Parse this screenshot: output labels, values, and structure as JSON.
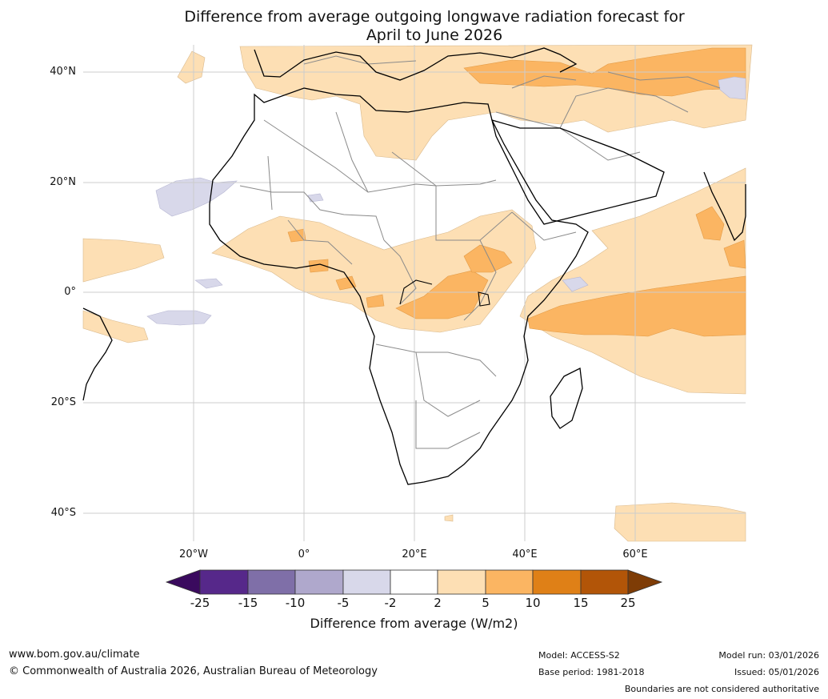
{
  "title": {
    "line1": "Difference from average outgoing longwave radiation forecast for",
    "line2": "April to June 2026"
  },
  "map": {
    "lat_labels": [
      "40°N",
      "20°N",
      "0°",
      "20°S",
      "40°S"
    ],
    "lon_labels": [
      "20°W",
      "0°",
      "20°E",
      "40°E",
      "60°E"
    ]
  },
  "colorbar": {
    "ticks": [
      "-25",
      "-15",
      "-10",
      "-5",
      "-2",
      "2",
      "5",
      "10",
      "15",
      "25"
    ],
    "colors": [
      "#3a0a5e",
      "#56288a",
      "#7f6fa8",
      "#afa8cc",
      "#d8d8ea",
      "#ffffff",
      "#fddfb4",
      "#fbb562",
      "#df8017",
      "#b25508",
      "#7e3c06"
    ],
    "label": "Difference from average (W/m2)"
  },
  "footer": {
    "website": "www.bom.gov.au/climate",
    "copyright": "© Commonwealth of Australia 2026, Australian Bureau of Meteorology",
    "model": "Model: ACCESS-S2",
    "base_period": "Base period: 1981-2018",
    "model_run": "Model run: 03/01/2026",
    "issued": "Issued: 05/01/2026",
    "disclaimer": "Boundaries are not considered authoritative"
  }
}
